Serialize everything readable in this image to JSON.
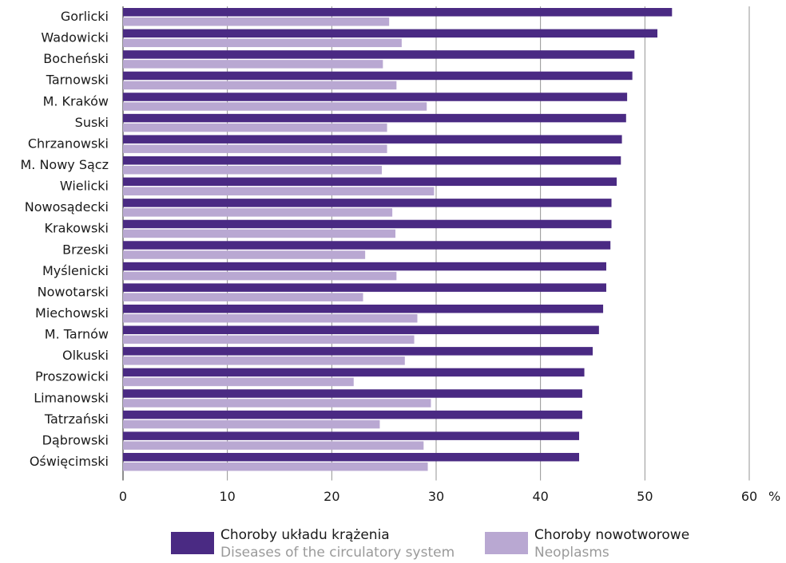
{
  "chart_data": {
    "type": "bar",
    "orientation": "horizontal",
    "unit": "%",
    "categories": [
      "Gorlicki",
      "Wadowicki",
      "Bocheński",
      "Tarnowski",
      "M. Kraków",
      "Suski",
      "Chrzanowski",
      "M. Nowy Sącz",
      "Wielicki",
      "Nowosądecki",
      "Krakowski",
      "Brzeski",
      "Myślenicki",
      "Nowotarski",
      "Miechowski",
      "M. Tarnów",
      "Olkuski",
      "Proszowicki",
      "Limanowski",
      "Tatrzański",
      "Dąbrowski",
      "Oświęcimski"
    ],
    "series": [
      {
        "name": "Choroby układu krążenia",
        "name_en": "Diseases of the circulatory system",
        "color": "#4a2a83",
        "values": [
          52.6,
          51.2,
          49.0,
          48.8,
          48.3,
          48.2,
          47.8,
          47.7,
          47.3,
          46.8,
          46.8,
          46.7,
          46.3,
          46.3,
          46.0,
          45.6,
          45.0,
          44.2,
          44.0,
          44.0,
          43.7,
          43.7
        ]
      },
      {
        "name": "Choroby nowotworowe",
        "name_en": "Neoplasms",
        "color": "#b9a8d2",
        "values": [
          25.5,
          26.7,
          24.9,
          26.2,
          29.1,
          25.3,
          25.3,
          24.8,
          29.8,
          25.8,
          26.1,
          23.2,
          26.2,
          23.0,
          28.2,
          27.9,
          27.0,
          22.1,
          29.5,
          24.6,
          28.8,
          29.2
        ]
      }
    ],
    "xlim": [
      0,
      60
    ],
    "xticks": [
      0,
      10,
      20,
      30,
      40,
      50,
      60
    ],
    "grid": true,
    "legend": "bottom"
  }
}
